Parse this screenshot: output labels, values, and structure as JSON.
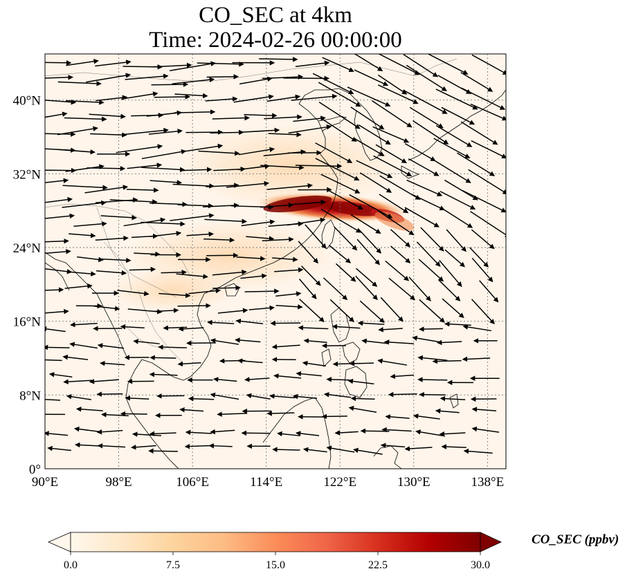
{
  "title": {
    "line1": "CO_SEC at 4km",
    "line2": "Time: 2024-02-26 00:00:00"
  },
  "map": {
    "lon_range": [
      90,
      140
    ],
    "lat_range": [
      0,
      45
    ],
    "lon_ticks": [
      {
        "value": 90,
        "label": "90°E"
      },
      {
        "value": 98,
        "label": "98°E"
      },
      {
        "value": 106,
        "label": "106°E"
      },
      {
        "value": 114,
        "label": "114°E"
      },
      {
        "value": 122,
        "label": "122°E"
      },
      {
        "value": 130,
        "label": "130°E"
      },
      {
        "value": 138,
        "label": "138°E"
      }
    ],
    "lat_ticks": [
      {
        "value": 0,
        "label": "0°"
      },
      {
        "value": 8,
        "label": "8°N"
      },
      {
        "value": 16,
        "label": "16°N"
      },
      {
        "value": 24,
        "label": "24°N"
      },
      {
        "value": 32,
        "label": "32°N"
      },
      {
        "value": 40,
        "label": "40°N"
      }
    ],
    "gridlines": true,
    "background_color": "#fff5ea",
    "coastline_color": "#000000",
    "plume_colors": [
      "#fdd9b0",
      "#f08a4f",
      "#c41a1a",
      "#7f0000"
    ],
    "wind_field": {
      "description_type": "quiver",
      "regions": [
        {
          "lat_min": 26,
          "lat_max": 45,
          "lon_min": 90,
          "lon_max": 120,
          "u": 1.0,
          "v": 0.05,
          "speed": 1.0
        },
        {
          "lat_min": 26,
          "lat_max": 45,
          "lon_min": 120,
          "lon_max": 140,
          "u": 1.0,
          "v": -0.55,
          "speed": 1.1
        },
        {
          "lat_min": 16,
          "lat_max": 26,
          "lon_min": 90,
          "lon_max": 118,
          "u": 1.0,
          "v": 0.0,
          "speed": 0.6
        },
        {
          "lat_min": 16,
          "lat_max": 26,
          "lon_min": 118,
          "lon_max": 140,
          "u": 0.7,
          "v": -0.7,
          "speed": 0.6
        },
        {
          "lat_min": 0,
          "lat_max": 16,
          "lon_min": 90,
          "lon_max": 140,
          "u": -1.0,
          "v": 0.05,
          "speed": 0.45
        }
      ]
    }
  },
  "colorbar": {
    "label": "CO_SEC (ppbv)",
    "min": 0.0,
    "max": 30.0,
    "ticks": [
      {
        "value": 0.0,
        "label": "0.0"
      },
      {
        "value": 7.5,
        "label": "7.5"
      },
      {
        "value": 15.0,
        "label": "15.0"
      },
      {
        "value": 22.5,
        "label": "22.5"
      },
      {
        "value": 30.0,
        "label": "30.0"
      }
    ],
    "colormap_stops": [
      "#fff7ec",
      "#fee8c8",
      "#fdd49e",
      "#fdbb84",
      "#fc8d59",
      "#ef6548",
      "#d7301f",
      "#b30000",
      "#7f0000"
    ],
    "extend": "both"
  }
}
